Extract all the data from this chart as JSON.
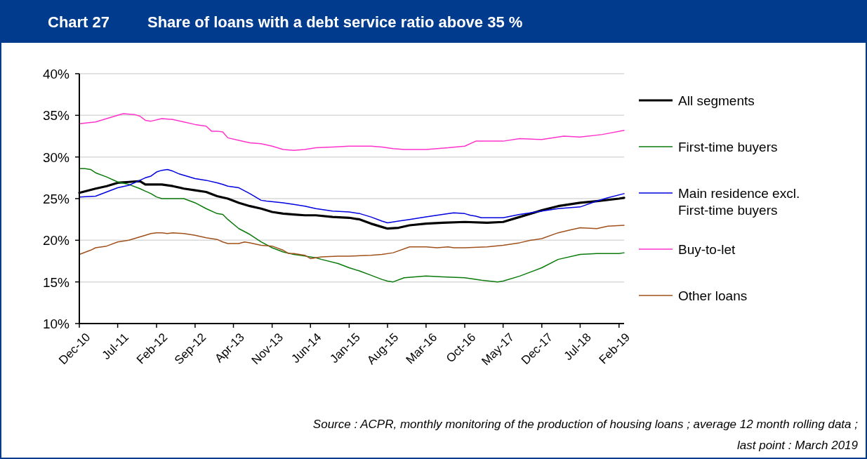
{
  "chart_data": {
    "type": "line",
    "title": "Chart 27",
    "subtitle": "Share of loans with a debt service ratio above 35 %",
    "annotations": [
      "Source : ACPR, monthly monitoring of the production of housing loans ; average 12 month rolling data ; last point : March 2019"
    ],
    "xlim": [
      "2010-12",
      "2019-03"
    ],
    "xticks": [
      {
        "value": "2010-12",
        "label": "Dec-10"
      },
      {
        "value": "2011-07",
        "label": "Jul-11"
      },
      {
        "value": "2012-02",
        "label": "Feb-12"
      },
      {
        "value": "2012-09",
        "label": "Sep-12"
      },
      {
        "value": "2013-04",
        "label": "Apr-13"
      },
      {
        "value": "2013-11",
        "label": "Nov-13"
      },
      {
        "value": "2014-06",
        "label": "Jun-14"
      },
      {
        "value": "2015-01",
        "label": "Jan-15"
      },
      {
        "value": "2015-08",
        "label": "Aug-15"
      },
      {
        "value": "2016-03",
        "label": "Mar-16"
      },
      {
        "value": "2016-10",
        "label": "Oct-16"
      },
      {
        "value": "2017-05",
        "label": "May-17"
      },
      {
        "value": "2017-12",
        "label": "Dec-17"
      },
      {
        "value": "2018-07",
        "label": "Jul-18"
      },
      {
        "value": "2019-02",
        "label": "Feb-19"
      }
    ],
    "ylim": [
      10,
      40
    ],
    "yticks": [
      {
        "value": 10,
        "label": "10%"
      },
      {
        "value": 15,
        "label": "15%"
      },
      {
        "value": 20,
        "label": "20%"
      },
      {
        "value": 25,
        "label": "25%"
      },
      {
        "value": 30,
        "label": "30%"
      },
      {
        "value": 35,
        "label": "35%"
      },
      {
        "value": 40,
        "label": "40%"
      }
    ],
    "grid": "y",
    "legend": "right",
    "marker": "none",
    "line_style": "solid",
    "series": [
      {
        "name": "All segments",
        "color": "#000000",
        "x": [
          "2010-12",
          "2011-03",
          "2011-05",
          "2011-07",
          "2011-09",
          "2011-11",
          "2011-12",
          "2012-01",
          "2012-03",
          "2012-05",
          "2012-07",
          "2012-09",
          "2012-11",
          "2013-01",
          "2013-03",
          "2013-05",
          "2013-07",
          "2013-09",
          "2013-11",
          "2014-01",
          "2014-03",
          "2014-05",
          "2014-07",
          "2014-10",
          "2015-01",
          "2015-03",
          "2015-05",
          "2015-07",
          "2015-08",
          "2015-10",
          "2015-12",
          "2016-03",
          "2016-06",
          "2016-10",
          "2017-02",
          "2017-05",
          "2017-08",
          "2017-12",
          "2018-03",
          "2018-07",
          "2018-10",
          "2019-02",
          "2019-03"
        ],
        "values": [
          25.7,
          26.2,
          26.5,
          26.9,
          27.0,
          27.1,
          26.7,
          26.7,
          26.7,
          26.5,
          26.2,
          26.0,
          25.8,
          25.3,
          25.0,
          24.5,
          24.1,
          23.8,
          23.4,
          23.2,
          23.1,
          23.0,
          23.0,
          22.8,
          22.7,
          22.5,
          22.0,
          21.6,
          21.4,
          21.5,
          21.8,
          22.0,
          22.1,
          22.2,
          22.1,
          22.2,
          22.8,
          23.6,
          24.1,
          24.5,
          24.7,
          25.0,
          25.1
        ]
      },
      {
        "name": "First-time buyers",
        "color": "#0a7a0a",
        "x": [
          "2010-12",
          "2011-01",
          "2011-02",
          "2011-03",
          "2011-05",
          "2011-07",
          "2011-09",
          "2011-11",
          "2011-12",
          "2012-01",
          "2012-02",
          "2012-03",
          "2012-05",
          "2012-07",
          "2012-09",
          "2012-11",
          "2013-01",
          "2013-02",
          "2013-03",
          "2013-05",
          "2013-07",
          "2013-09",
          "2013-11",
          "2014-01",
          "2014-03",
          "2014-05",
          "2014-07",
          "2014-08",
          "2014-11",
          "2015-01",
          "2015-03",
          "2015-05",
          "2015-07",
          "2015-08",
          "2015-09",
          "2015-11",
          "2016-03",
          "2016-06",
          "2016-10",
          "2017-01",
          "2017-04",
          "2017-05",
          "2017-08",
          "2017-12",
          "2018-03",
          "2018-07",
          "2018-10",
          "2019-02",
          "2019-03"
        ],
        "values": [
          28.6,
          28.6,
          28.5,
          28.1,
          27.6,
          27.0,
          26.7,
          26.2,
          25.9,
          25.6,
          25.2,
          25.0,
          25.0,
          25.0,
          24.5,
          23.8,
          23.2,
          23.1,
          22.5,
          21.4,
          20.7,
          19.8,
          19.1,
          18.6,
          18.3,
          18.1,
          17.9,
          17.7,
          17.2,
          16.7,
          16.3,
          15.8,
          15.3,
          15.1,
          15.0,
          15.5,
          15.7,
          15.6,
          15.5,
          15.2,
          15.0,
          15.1,
          15.7,
          16.7,
          17.7,
          18.3,
          18.4,
          18.4,
          18.5
        ]
      },
      {
        "name": "Main residence excl. First-time buyers",
        "color": "#0000e0",
        "x": [
          "2010-12",
          "2011-03",
          "2011-05",
          "2011-07",
          "2011-09",
          "2011-11",
          "2011-12",
          "2012-01",
          "2012-02",
          "2012-03",
          "2012-04",
          "2012-05",
          "2012-06",
          "2012-07",
          "2012-09",
          "2012-11",
          "2013-01",
          "2013-02",
          "2013-03",
          "2013-05",
          "2013-07",
          "2013-09",
          "2013-10",
          "2014-01",
          "2014-03",
          "2014-05",
          "2014-07",
          "2014-10",
          "2015-01",
          "2015-03",
          "2015-05",
          "2015-07",
          "2015-08",
          "2015-10",
          "2015-12",
          "2016-03",
          "2016-06",
          "2016-08",
          "2016-10",
          "2016-11",
          "2016-12",
          "2017-01",
          "2017-05",
          "2017-08",
          "2017-12",
          "2018-03",
          "2018-07",
          "2018-10",
          "2018-12",
          "2019-03"
        ],
        "values": [
          25.2,
          25.3,
          25.8,
          26.3,
          26.6,
          27.2,
          27.5,
          27.7,
          28.2,
          28.4,
          28.5,
          28.3,
          28.0,
          27.8,
          27.4,
          27.2,
          26.9,
          26.7,
          26.5,
          26.3,
          25.6,
          24.8,
          24.7,
          24.5,
          24.3,
          24.1,
          23.8,
          23.5,
          23.4,
          23.2,
          22.8,
          22.3,
          22.1,
          22.3,
          22.5,
          22.8,
          23.1,
          23.3,
          23.2,
          23.0,
          22.9,
          22.7,
          22.7,
          23.1,
          23.5,
          23.8,
          24.0,
          24.7,
          25.1,
          25.6
        ]
      },
      {
        "name": "Buy-to-let",
        "color": "#ff33cc",
        "x": [
          "2010-12",
          "2011-03",
          "2011-05",
          "2011-07",
          "2011-08",
          "2011-10",
          "2011-11",
          "2011-12",
          "2012-01",
          "2012-03",
          "2012-05",
          "2012-07",
          "2012-09",
          "2012-11",
          "2012-12",
          "2013-01",
          "2013-02",
          "2013-03",
          "2013-05",
          "2013-07",
          "2013-09",
          "2013-11",
          "2014-01",
          "2014-03",
          "2014-05",
          "2014-07",
          "2014-10",
          "2015-01",
          "2015-05",
          "2015-07",
          "2015-09",
          "2015-11",
          "2016-03",
          "2016-07",
          "2016-10",
          "2016-12",
          "2017-05",
          "2017-08",
          "2017-12",
          "2018-04",
          "2018-07",
          "2018-11",
          "2019-03"
        ],
        "values": [
          34.0,
          34.2,
          34.6,
          35.0,
          35.2,
          35.1,
          34.9,
          34.4,
          34.3,
          34.6,
          34.5,
          34.2,
          33.9,
          33.7,
          33.1,
          33.1,
          33.0,
          32.3,
          32.0,
          31.7,
          31.6,
          31.3,
          30.9,
          30.8,
          30.9,
          31.1,
          31.2,
          31.3,
          31.3,
          31.2,
          31.0,
          30.9,
          30.9,
          31.1,
          31.3,
          31.9,
          31.9,
          32.2,
          32.1,
          32.5,
          32.4,
          32.7,
          33.2
        ]
      },
      {
        "name": "Other loans",
        "color": "#a0501a",
        "x": [
          "2010-12",
          "2011-02",
          "2011-03",
          "2011-05",
          "2011-07",
          "2011-09",
          "2011-11",
          "2011-12",
          "2012-01",
          "2012-02",
          "2012-03",
          "2012-04",
          "2012-05",
          "2012-07",
          "2012-09",
          "2012-11",
          "2013-01",
          "2013-02",
          "2013-03",
          "2013-05",
          "2013-06",
          "2013-07",
          "2013-09",
          "2013-11",
          "2014-01",
          "2014-02",
          "2014-03",
          "2014-05",
          "2014-06",
          "2014-07",
          "2014-08",
          "2014-11",
          "2015-01",
          "2015-05",
          "2015-07",
          "2015-09",
          "2015-12",
          "2016-03",
          "2016-05",
          "2016-07",
          "2016-08",
          "2016-10",
          "2017-02",
          "2017-05",
          "2017-08",
          "2017-10",
          "2017-12",
          "2018-03",
          "2018-05",
          "2018-07",
          "2018-10",
          "2018-12",
          "2019-03"
        ],
        "values": [
          18.3,
          18.8,
          19.1,
          19.3,
          19.8,
          20.0,
          20.4,
          20.6,
          20.8,
          20.9,
          20.9,
          20.8,
          20.9,
          20.8,
          20.6,
          20.3,
          20.1,
          19.8,
          19.6,
          19.6,
          19.8,
          19.7,
          19.4,
          19.3,
          18.8,
          18.4,
          18.4,
          18.2,
          17.8,
          17.9,
          18.0,
          18.1,
          18.1,
          18.2,
          18.3,
          18.5,
          19.2,
          19.2,
          19.1,
          19.2,
          19.1,
          19.1,
          19.2,
          19.4,
          19.7,
          20.0,
          20.2,
          20.9,
          21.2,
          21.5,
          21.4,
          21.7,
          21.8
        ]
      }
    ]
  }
}
